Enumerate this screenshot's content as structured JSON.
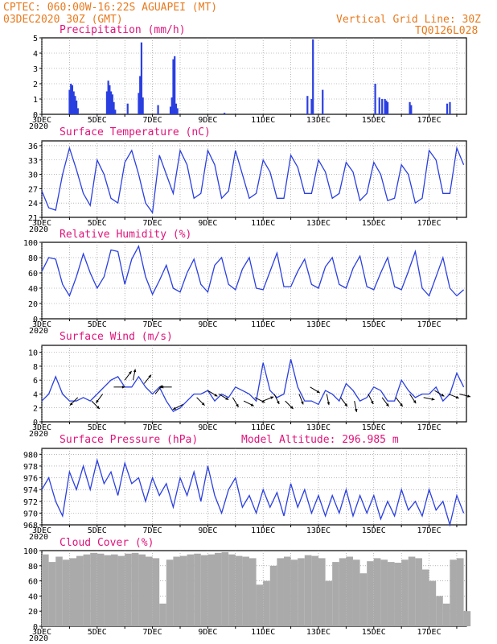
{
  "header": {
    "left_line1": "CPTEC:   060:00W-16:22S  AGUAPEI (MT)",
    "left_line2": "03DEC2020 30Z (GMT)",
    "right_line1": "Vertical Grid Line: 30Z",
    "right_line2": "TQ0126L028"
  },
  "colors": {
    "header": "#e87a1e",
    "title": "#e0137a",
    "series": "#2a3fe0",
    "cloud": "#aaaaaa",
    "arrow": "#000000"
  },
  "x_ticks": [
    "3DEC",
    "5DEC",
    "7DEC",
    "9DEC",
    "11DEC",
    "13DEC",
    "15DEC",
    "17DEC"
  ],
  "year_label": "2020",
  "chart_data": [
    {
      "type": "bar",
      "title": "Precipitation (mm/h)",
      "ylim": [
        0,
        5
      ],
      "yticks": [
        0,
        1,
        2,
        3,
        4,
        5
      ],
      "x_unit": "days since 3DEC",
      "x": [
        1.0,
        1.05,
        1.1,
        1.15,
        1.2,
        1.25,
        1.3,
        2.35,
        2.4,
        2.45,
        2.5,
        2.55,
        2.6,
        2.65,
        3.1,
        3.5,
        3.55,
        3.6,
        3.65,
        4.2,
        4.65,
        4.7,
        4.75,
        4.8,
        4.85,
        4.9,
        6.6,
        9.6,
        9.75,
        9.8,
        10.15,
        12.05,
        12.2,
        12.3,
        12.4,
        12.45,
        12.5,
        13.3,
        13.35,
        14.65,
        14.75
      ],
      "values": [
        1.6,
        2.0,
        1.9,
        1.5,
        1.2,
        0.9,
        0.4,
        1.5,
        2.2,
        1.9,
        1.5,
        1.3,
        0.8,
        0.3,
        0.7,
        1.4,
        2.5,
        4.7,
        1.1,
        0.6,
        0.5,
        1.1,
        3.6,
        3.8,
        0.7,
        0.4,
        0.1,
        1.2,
        1.0,
        4.9,
        1.6,
        2.0,
        1.1,
        1.0,
        1.0,
        0.9,
        0.8,
        0.8,
        0.6,
        0.7,
        0.8
      ]
    },
    {
      "type": "line",
      "title": "Surface Temperature (nC)",
      "ylim": [
        21,
        37
      ],
      "yticks": [
        21,
        24,
        27,
        30,
        33,
        36
      ],
      "x_unit": "days since 3DEC",
      "x": [
        0.0,
        0.25,
        0.5,
        0.75,
        1.0,
        1.25,
        1.5,
        1.75,
        2.0,
        2.25,
        2.5,
        2.75,
        3.0,
        3.25,
        3.5,
        3.75,
        4.0,
        4.25,
        4.5,
        4.75,
        5.0,
        5.25,
        5.5,
        5.75,
        6.0,
        6.25,
        6.5,
        6.75,
        7.0,
        7.25,
        7.5,
        7.75,
        8.0,
        8.25,
        8.5,
        8.75,
        9.0,
        9.25,
        9.5,
        9.75,
        10.0,
        10.25,
        10.5,
        10.75,
        11.0,
        11.25,
        11.5,
        11.75,
        12.0,
        12.25,
        12.5,
        12.75,
        13.0,
        13.25,
        13.5,
        13.75,
        14.0,
        14.25,
        14.5,
        14.75,
        15.0,
        15.25
      ],
      "values": [
        26.5,
        23,
        22.5,
        30,
        35.5,
        31,
        26,
        23.5,
        33,
        30,
        25,
        24,
        32.5,
        35,
        30,
        24,
        22,
        34,
        30,
        26,
        35,
        32,
        25,
        26,
        35,
        32,
        25,
        26.5,
        35,
        30,
        25,
        26,
        33,
        30.5,
        25,
        25,
        34,
        31.5,
        26,
        26,
        33,
        30.5,
        25,
        26,
        32.5,
        30.5,
        24.5,
        26,
        32.5,
        30,
        24.5,
        25,
        32,
        30,
        24,
        25,
        35,
        33,
        26,
        26,
        35.5,
        32
      ]
    },
    {
      "type": "line",
      "title": "Relative Humidity (%)",
      "ylim": [
        0,
        100
      ],
      "yticks": [
        0,
        20,
        40,
        60,
        80,
        100
      ],
      "x_unit": "days since 3DEC",
      "x": [
        0.0,
        0.25,
        0.5,
        0.75,
        1.0,
        1.25,
        1.5,
        1.75,
        2.0,
        2.25,
        2.5,
        2.75,
        3.0,
        3.25,
        3.5,
        3.75,
        4.0,
        4.25,
        4.5,
        4.75,
        5.0,
        5.25,
        5.5,
        5.75,
        6.0,
        6.25,
        6.5,
        6.75,
        7.0,
        7.25,
        7.5,
        7.75,
        8.0,
        8.25,
        8.5,
        8.75,
        9.0,
        9.25,
        9.5,
        9.75,
        10.0,
        10.25,
        10.5,
        10.75,
        11.0,
        11.25,
        11.5,
        11.75,
        12.0,
        12.25,
        12.5,
        12.75,
        13.0,
        13.25,
        13.5,
        13.75,
        14.0,
        14.25,
        14.5,
        14.75,
        15.0,
        15.25
      ],
      "values": [
        62,
        80,
        78,
        45,
        30,
        55,
        85,
        60,
        40,
        55,
        90,
        88,
        45,
        78,
        95,
        55,
        32,
        50,
        70,
        40,
        35,
        60,
        78,
        45,
        35,
        70,
        80,
        45,
        38,
        65,
        80,
        40,
        38,
        62,
        86,
        42,
        42,
        62,
        78,
        45,
        40,
        68,
        80,
        45,
        40,
        66,
        82,
        42,
        38,
        60,
        80,
        42,
        38,
        62,
        88,
        40,
        30,
        55,
        80,
        40,
        30,
        38
      ]
    },
    {
      "type": "line",
      "title": "Surface Wind (m/s)",
      "ylim": [
        0,
        11
      ],
      "yticks": [
        0,
        2,
        4,
        6,
        8,
        10
      ],
      "x_unit": "days since 3DEC",
      "x": [
        0.0,
        0.25,
        0.5,
        0.75,
        1.0,
        1.25,
        1.5,
        1.75,
        2.0,
        2.25,
        2.5,
        2.75,
        3.0,
        3.25,
        3.5,
        3.75,
        4.0,
        4.25,
        4.5,
        4.75,
        5.0,
        5.25,
        5.5,
        5.75,
        6.0,
        6.25,
        6.5,
        6.75,
        7.0,
        7.25,
        7.5,
        7.75,
        8.0,
        8.25,
        8.5,
        8.75,
        9.0,
        9.25,
        9.5,
        9.75,
        10.0,
        10.25,
        10.5,
        10.75,
        11.0,
        11.25,
        11.5,
        11.75,
        12.0,
        12.25,
        12.5,
        12.75,
        13.0,
        13.25,
        13.5,
        13.75,
        14.0,
        14.25,
        14.5,
        14.75,
        15.0,
        15.25
      ],
      "values": [
        3,
        4,
        6.5,
        4,
        3,
        3,
        3.5,
        3,
        4,
        5,
        6,
        6.5,
        5,
        5,
        6.5,
        5,
        4,
        5,
        3,
        1.5,
        2,
        3,
        4,
        4,
        4.5,
        3,
        4,
        3.5,
        5,
        4.5,
        4,
        3,
        8.5,
        4.5,
        3.5,
        4,
        9,
        5,
        3,
        3,
        2.5,
        4.5,
        4,
        3,
        5.5,
        4.5,
        3,
        3.5,
        5,
        4.5,
        3,
        3,
        6,
        4.5,
        3.5,
        4,
        4,
        5,
        3,
        4,
        7,
        5
      ]
    },
    {
      "type": "line",
      "title": "Surface Pressure (hPa)",
      "subtitle": "Model Altitude: 296.985 m",
      "ylim": [
        968,
        981
      ],
      "yticks": [
        968,
        970,
        972,
        974,
        976,
        978,
        980
      ],
      "x_unit": "days since 3DEC",
      "x": [
        0.0,
        0.25,
        0.5,
        0.75,
        1.0,
        1.25,
        1.5,
        1.75,
        2.0,
        2.25,
        2.5,
        2.75,
        3.0,
        3.25,
        3.5,
        3.75,
        4.0,
        4.25,
        4.5,
        4.75,
        5.0,
        5.25,
        5.5,
        5.75,
        6.0,
        6.25,
        6.5,
        6.75,
        7.0,
        7.25,
        7.5,
        7.75,
        8.0,
        8.25,
        8.5,
        8.75,
        9.0,
        9.25,
        9.5,
        9.75,
        10.0,
        10.25,
        10.5,
        10.75,
        11.0,
        11.25,
        11.5,
        11.75,
        12.0,
        12.25,
        12.5,
        12.75,
        13.0,
        13.25,
        13.5,
        13.75,
        14.0,
        14.25,
        14.5,
        14.75,
        15.0,
        15.25
      ],
      "values": [
        974,
        976,
        972,
        969.5,
        977,
        974,
        978,
        974,
        979,
        975,
        977,
        973,
        978.5,
        975,
        976,
        972,
        976,
        973,
        975,
        971,
        976,
        973,
        977,
        972,
        978,
        973,
        970,
        974,
        976,
        971,
        973,
        970,
        974,
        971,
        973.5,
        969.5,
        975,
        971,
        974,
        970,
        973,
        969.5,
        973,
        970,
        974,
        969.5,
        973,
        970,
        973,
        969,
        972,
        969.5,
        974,
        970.5,
        972,
        969.5,
        974,
        970.5,
        972,
        968,
        973,
        970
      ]
    },
    {
      "type": "area",
      "title": "Cloud Cover (%)",
      "ylim": [
        0,
        100
      ],
      "yticks": [
        0,
        20,
        40,
        60,
        80,
        100
      ],
      "x_unit": "days since 3DEC",
      "x": [
        0.0,
        0.25,
        0.5,
        0.75,
        1.0,
        1.25,
        1.5,
        1.75,
        2.0,
        2.25,
        2.5,
        2.75,
        3.0,
        3.25,
        3.5,
        3.75,
        4.0,
        4.25,
        4.5,
        4.75,
        5.0,
        5.25,
        5.5,
        5.75,
        6.0,
        6.25,
        6.5,
        6.75,
        7.0,
        7.25,
        7.5,
        7.75,
        8.0,
        8.25,
        8.5,
        8.75,
        9.0,
        9.25,
        9.5,
        9.75,
        10.0,
        10.25,
        10.5,
        10.75,
        11.0,
        11.25,
        11.5,
        11.75,
        12.0,
        12.25,
        12.5,
        12.75,
        13.0,
        13.25,
        13.5,
        13.75,
        14.0,
        14.25,
        14.5,
        14.75,
        15.0,
        15.25
      ],
      "values": [
        95,
        85,
        92,
        88,
        90,
        93,
        95,
        97,
        96,
        94,
        95,
        93,
        96,
        97,
        95,
        92,
        90,
        30,
        88,
        92,
        93,
        95,
        96,
        94,
        95,
        97,
        98,
        95,
        93,
        92,
        90,
        55,
        60,
        80,
        90,
        92,
        88,
        90,
        94,
        93,
        90,
        60,
        85,
        90,
        92,
        88,
        70,
        86,
        90,
        88,
        85,
        84,
        88,
        92,
        90,
        75,
        60,
        40,
        30,
        88,
        90,
        20
      ]
    }
  ],
  "wind_arrows": {
    "x": [
      1.3,
      1.8,
      2.2,
      2.6,
      3.0,
      3.3,
      3.7,
      4.1,
      4.7,
      5.1,
      5.6,
      6.0,
      6.4,
      6.9,
      7.3,
      7.7,
      8.0,
      8.4,
      8.8,
      9.3,
      9.7,
      10.3,
      10.8,
      11.3,
      11.8,
      12.3,
      12.8,
      13.3,
      13.8,
      14.2,
      14.7,
      15.1
    ],
    "y": [
      3.5,
      3,
      4,
      5,
      6,
      6,
      5.5,
      4,
      5,
      2.5,
      3.5,
      4.5,
      4,
      3.5,
      3,
      3.5,
      3,
      4,
      3,
      4,
      5,
      4,
      3.5,
      3,
      4,
      3.5,
      3.5,
      4,
      3.5,
      4.5,
      4,
      4
    ],
    "u": [
      -0.3,
      0.3,
      -0.3,
      0.6,
      0.3,
      0.1,
      0.4,
      0.4,
      -0.5,
      -0.4,
      0.3,
      0.5,
      0.5,
      0.3,
      0.6,
      0.6,
      0.5,
      0.2,
      0.4,
      0.2,
      0.5,
      0.1,
      0.3,
      0.1,
      0.2,
      0.3,
      0.3,
      0.2,
      0.5,
      0.5,
      0.5,
      0.4
    ],
    "v": [
      -0.3,
      -0.3,
      -0.4,
      0.0,
      0.4,
      0.5,
      0.5,
      0.5,
      0.0,
      -0.2,
      -0.3,
      -0.3,
      -0.3,
      -0.5,
      -0.3,
      -0.3,
      0.2,
      -0.4,
      -0.4,
      -0.5,
      -0.3,
      -0.5,
      -0.4,
      -0.5,
      -0.4,
      -0.4,
      -0.4,
      -0.3,
      -0.1,
      -0.3,
      -0.2,
      -0.1
    ]
  }
}
